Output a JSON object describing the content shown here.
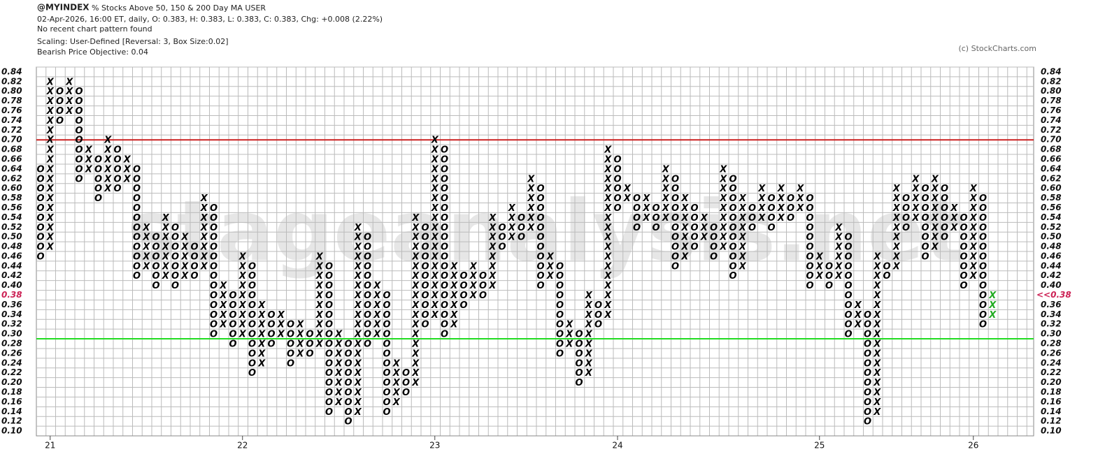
{
  "header": {
    "symbol": "@MYINDEX",
    "name": "% Stocks Above 50, 150 & 200 Day MA  USER",
    "quote": "02-Apr-2026, 16:00 ET, daily, O: 0.383, H: 0.383, L: 0.383, C: 0.383, Chg: +0.008 (2.22%)",
    "pattern": "No recent chart pattern found",
    "scaling": "Scaling: User-Defined [Reversal: 3, Box Size:0.02]",
    "objective": "Bearish Price Objective: 0.04",
    "copyright": "(c) StockCharts.com",
    "watermark": "stageanalysis.net"
  },
  "chart_data": {
    "type": "pnf",
    "box_size": 0.02,
    "x_symbol": "X",
    "o_symbol": "O",
    "x_color": "#000000",
    "o_color": "#000000",
    "last_color": "#22aa22",
    "ylim": [
      0.09,
      0.85
    ],
    "yticks": [
      {
        "value": 0.1,
        "label": "0.10"
      },
      0.12,
      0.14,
      0.16,
      0.18,
      {
        "value": 0.2,
        "label": "0.20"
      },
      0.22,
      0.24,
      0.26,
      0.28,
      {
        "value": 0.3,
        "label": "0.30"
      },
      0.32,
      0.34,
      0.36,
      0.38,
      {
        "value": 0.4,
        "label": "0.40"
      },
      0.42,
      0.44,
      0.46,
      0.48,
      {
        "value": 0.5,
        "label": "0.50"
      },
      0.52,
      0.54,
      0.56,
      0.58,
      {
        "value": 0.6,
        "label": "0.60"
      },
      0.62,
      0.64,
      0.66,
      0.68,
      {
        "value": 0.7,
        "label": "0.70"
      },
      0.72,
      0.74,
      0.76,
      0.78,
      {
        "value": 0.8,
        "label": "0.80"
      },
      0.82,
      0.84
    ],
    "xticks": [
      {
        "value": 1,
        "label": "21"
      },
      {
        "value": 21,
        "label": "22"
      },
      {
        "value": 41,
        "label": "23"
      },
      {
        "value": 60,
        "label": "24"
      },
      {
        "value": 81,
        "label": "25"
      },
      {
        "value": 97,
        "label": "26"
      }
    ],
    "last_value": 0.38,
    "last_price_label": "<<0.38",
    "reference_lines": [
      {
        "value": 0.7,
        "color": "#cc2222"
      },
      {
        "value": 0.29,
        "color": "#22dd22"
      }
    ],
    "columns": [
      {
        "type": "O",
        "high": 0.64,
        "low": 0.46
      },
      {
        "type": "X",
        "high": 0.82,
        "low": 0.48
      },
      {
        "type": "O",
        "high": 0.8,
        "low": 0.74
      },
      {
        "type": "X",
        "high": 0.82,
        "low": 0.76
      },
      {
        "type": "O",
        "high": 0.8,
        "low": 0.62
      },
      {
        "type": "X",
        "high": 0.68,
        "low": 0.64
      },
      {
        "type": "O",
        "high": 0.66,
        "low": 0.58
      },
      {
        "type": "X",
        "high": 0.7,
        "low": 0.6
      },
      {
        "type": "O",
        "high": 0.68,
        "low": 0.6
      },
      {
        "type": "X",
        "high": 0.66,
        "low": 0.62
      },
      {
        "type": "O",
        "high": 0.64,
        "low": 0.42
      },
      {
        "type": "X",
        "high": 0.52,
        "low": 0.44
      },
      {
        "type": "O",
        "high": 0.5,
        "low": 0.4
      },
      {
        "type": "X",
        "high": 0.54,
        "low": 0.42
      },
      {
        "type": "O",
        "high": 0.52,
        "low": 0.4
      },
      {
        "type": "X",
        "high": 0.5,
        "low": 0.42
      },
      {
        "type": "O",
        "high": 0.48,
        "low": 0.42
      },
      {
        "type": "X",
        "high": 0.58,
        "low": 0.44
      },
      {
        "type": "O",
        "high": 0.56,
        "low": 0.3
      },
      {
        "type": "X",
        "high": 0.4,
        "low": 0.32
      },
      {
        "type": "O",
        "high": 0.38,
        "low": 0.28
      },
      {
        "type": "X",
        "high": 0.46,
        "low": 0.3
      },
      {
        "type": "O",
        "high": 0.44,
        "low": 0.22
      },
      {
        "type": "X",
        "high": 0.36,
        "low": 0.24
      },
      {
        "type": "O",
        "high": 0.34,
        "low": 0.28
      },
      {
        "type": "X",
        "high": 0.34,
        "low": 0.3
      },
      {
        "type": "O",
        "high": 0.32,
        "low": 0.24
      },
      {
        "type": "X",
        "high": 0.32,
        "low": 0.26
      },
      {
        "type": "O",
        "high": 0.3,
        "low": 0.26
      },
      {
        "type": "X",
        "high": 0.46,
        "low": 0.28
      },
      {
        "type": "O",
        "high": 0.44,
        "low": 0.14
      },
      {
        "type": "X",
        "high": 0.3,
        "low": 0.16
      },
      {
        "type": "O",
        "high": 0.28,
        "low": 0.12
      },
      {
        "type": "X",
        "high": 0.52,
        "low": 0.14
      },
      {
        "type": "O",
        "high": 0.5,
        "low": 0.28
      },
      {
        "type": "X",
        "high": 0.4,
        "low": 0.3
      },
      {
        "type": "O",
        "high": 0.38,
        "low": 0.14
      },
      {
        "type": "X",
        "high": 0.24,
        "low": 0.16
      },
      {
        "type": "O",
        "high": 0.22,
        "low": 0.18
      },
      {
        "type": "X",
        "high": 0.54,
        "low": 0.2
      },
      {
        "type": "O",
        "high": 0.52,
        "low": 0.32
      },
      {
        "type": "X",
        "high": 0.7,
        "low": 0.34
      },
      {
        "type": "O",
        "high": 0.68,
        "low": 0.3
      },
      {
        "type": "X",
        "high": 0.44,
        "low": 0.32
      },
      {
        "type": "O",
        "high": 0.42,
        "low": 0.36
      },
      {
        "type": "X",
        "high": 0.44,
        "low": 0.38
      },
      {
        "type": "O",
        "high": 0.42,
        "low": 0.38
      },
      {
        "type": "X",
        "high": 0.54,
        "low": 0.4
      },
      {
        "type": "O",
        "high": 0.52,
        "low": 0.48
      },
      {
        "type": "X",
        "high": 0.56,
        "low": 0.5
      },
      {
        "type": "O",
        "high": 0.54,
        "low": 0.5
      },
      {
        "type": "X",
        "high": 0.62,
        "low": 0.52
      },
      {
        "type": "O",
        "high": 0.6,
        "low": 0.4
      },
      {
        "type": "X",
        "high": 0.46,
        "low": 0.42
      },
      {
        "type": "O",
        "high": 0.44,
        "low": 0.26
      },
      {
        "type": "X",
        "high": 0.32,
        "low": 0.28
      },
      {
        "type": "O",
        "high": 0.3,
        "low": 0.2
      },
      {
        "type": "X",
        "high": 0.38,
        "low": 0.22
      },
      {
        "type": "O",
        "high": 0.36,
        "low": 0.32
      },
      {
        "type": "X",
        "high": 0.68,
        "low": 0.34
      },
      {
        "type": "O",
        "high": 0.66,
        "low": 0.56
      },
      {
        "type": "X",
        "high": 0.6,
        "low": 0.58
      },
      {
        "type": "O",
        "high": 0.58,
        "low": 0.52
      },
      {
        "type": "X",
        "high": 0.58,
        "low": 0.54
      },
      {
        "type": "O",
        "high": 0.56,
        "low": 0.52
      },
      {
        "type": "X",
        "high": 0.64,
        "low": 0.54
      },
      {
        "type": "O",
        "high": 0.62,
        "low": 0.44
      },
      {
        "type": "X",
        "high": 0.58,
        "low": 0.46
      },
      {
        "type": "O",
        "high": 0.56,
        "low": 0.48
      },
      {
        "type": "X",
        "high": 0.54,
        "low": 0.5
      },
      {
        "type": "O",
        "high": 0.52,
        "low": 0.46
      },
      {
        "type": "X",
        "high": 0.64,
        "low": 0.48
      },
      {
        "type": "O",
        "high": 0.62,
        "low": 0.42
      },
      {
        "type": "X",
        "high": 0.58,
        "low": 0.44
      },
      {
        "type": "O",
        "high": 0.56,
        "low": 0.52
      },
      {
        "type": "X",
        "high": 0.6,
        "low": 0.54
      },
      {
        "type": "O",
        "high": 0.58,
        "low": 0.52
      },
      {
        "type": "X",
        "high": 0.6,
        "low": 0.54
      },
      {
        "type": "O",
        "high": 0.58,
        "low": 0.54
      },
      {
        "type": "X",
        "high": 0.6,
        "low": 0.56
      },
      {
        "type": "O",
        "high": 0.58,
        "low": 0.4
      },
      {
        "type": "X",
        "high": 0.46,
        "low": 0.42
      },
      {
        "type": "O",
        "high": 0.44,
        "low": 0.4
      },
      {
        "type": "X",
        "high": 0.52,
        "low": 0.42
      },
      {
        "type": "O",
        "high": 0.5,
        "low": 0.3
      },
      {
        "type": "X",
        "high": 0.36,
        "low": 0.32
      },
      {
        "type": "O",
        "high": 0.34,
        "low": 0.12
      },
      {
        "type": "X",
        "high": 0.46,
        "low": 0.14
      },
      {
        "type": "O",
        "high": 0.44,
        "low": 0.42
      },
      {
        "type": "X",
        "high": 0.6,
        "low": 0.44
      },
      {
        "type": "O",
        "high": 0.58,
        "low": 0.52
      },
      {
        "type": "X",
        "high": 0.62,
        "low": 0.54
      },
      {
        "type": "O",
        "high": 0.6,
        "low": 0.46
      },
      {
        "type": "X",
        "high": 0.62,
        "low": 0.48
      },
      {
        "type": "O",
        "high": 0.6,
        "low": 0.5
      },
      {
        "type": "X",
        "high": 0.56,
        "low": 0.52
      },
      {
        "type": "O",
        "high": 0.54,
        "low": 0.4
      },
      {
        "type": "X",
        "high": 0.6,
        "low": 0.42
      },
      {
        "type": "O",
        "high": 0.58,
        "low": 0.32
      },
      {
        "type": "X",
        "high": 0.38,
        "low": 0.34,
        "last": true
      }
    ]
  }
}
